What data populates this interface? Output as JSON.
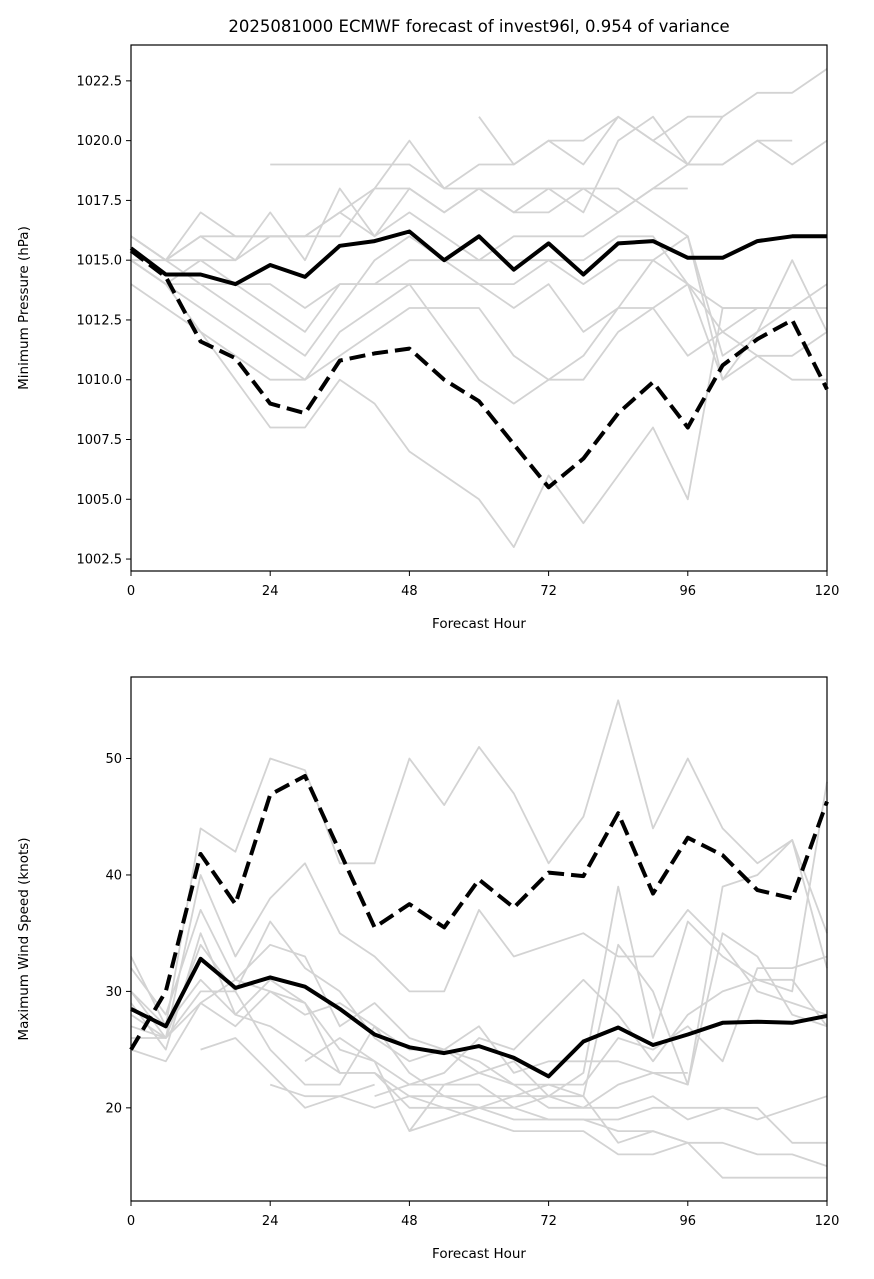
{
  "chart_data": [
    {
      "type": "line",
      "title": "2025081000 ECMWF forecast of invest96l, 0.954 of variance",
      "xlabel": "Forecast Hour",
      "ylabel": "Minimum Pressure (hPa)",
      "xlim": [
        0,
        120
      ],
      "ylim": [
        1002,
        1024
      ],
      "xticks": [
        "0",
        "24",
        "48",
        "72",
        "96",
        "120"
      ],
      "yticks": [
        "1002.5",
        "1005.0",
        "1007.5",
        "1010.0",
        "1012.5",
        "1015.0",
        "1017.5",
        "1020.0",
        "1022.5"
      ],
      "x": [
        0,
        6,
        12,
        18,
        24,
        30,
        36,
        42,
        48,
        54,
        60,
        66,
        72,
        78,
        84,
        90,
        96,
        102,
        108,
        114,
        120
      ],
      "series": [
        {
          "style": "solid-black",
          "values": [
            1015.5,
            1014.4,
            1014.4,
            1014.0,
            1014.8,
            1014.3,
            1015.6,
            1015.8,
            1016.2,
            1015.0,
            1016.0,
            1014.6,
            1015.7,
            1014.4,
            1015.7,
            1015.8,
            1015.1,
            1015.1,
            1015.8,
            1016.0,
            1016.0
          ]
        },
        {
          "style": "dashed-black",
          "values": [
            1015.4,
            1014.3,
            1011.6,
            1010.9,
            1009.0,
            1008.6,
            1010.8,
            1011.1,
            1011.3,
            1010.0,
            1009.1,
            1007.3,
            1005.5,
            1006.7,
            1008.6,
            1009.9,
            1008.0,
            1010.6,
            1011.7,
            1012.5,
            1009.6
          ]
        },
        {
          "style": "ensemble",
          "values": [
            1016,
            1015,
            1017,
            1016,
            1016,
            1016,
            1017,
            1018,
            1018,
            1017,
            1018,
            1017,
            1017,
            1018,
            1018,
            1017,
            1016,
            1010,
            1011,
            1011,
            1012
          ]
        },
        {
          "style": "ensemble",
          "values": [
            1015,
            1014,
            1013,
            1012,
            1011,
            1010,
            1012,
            1013,
            1014,
            1012,
            1010,
            1009,
            1010,
            1010,
            1012,
            1013,
            1011,
            1012,
            1013,
            1013,
            1013
          ]
        },
        {
          "style": "ensemble",
          "values": [
            1014,
            1013,
            1012,
            1011,
            1010,
            1010,
            1011,
            1012,
            1013,
            1013,
            1013,
            1011,
            1010,
            1011,
            1013,
            1013,
            1014,
            1010,
            1012,
            1015,
            1012
          ]
        },
        {
          "style": "ensemble",
          "values": [
            1016,
            1015,
            1014,
            1013,
            1012,
            1011,
            1013,
            1015,
            1016,
            1015,
            1014,
            1013,
            1014,
            1012,
            1013,
            1015,
            1016,
            1011,
            1012,
            1013,
            1014
          ]
        },
        {
          "style": "ensemble",
          "values": [
            1015,
            1014,
            1015,
            1014,
            1013,
            1012,
            1014,
            1014,
            1015,
            1015,
            1015,
            1015,
            1015,
            1015,
            1016,
            1016,
            1014,
            1013,
            1013,
            1013,
            1013
          ]
        },
        {
          "style": "ensemble",
          "values": [
            1016,
            1015,
            1015,
            1015,
            1017,
            1015,
            1018,
            1016,
            1017,
            1016,
            1015,
            1016,
            1016,
            1016,
            1017,
            1018,
            1019,
            1019,
            1020,
            1019,
            1020
          ]
        },
        {
          "style": "ensemble",
          "values": [
            null,
            null,
            null,
            null,
            1019,
            1019,
            1019,
            1019,
            1019,
            1018,
            1019,
            1019,
            1020,
            1020,
            1021,
            1020,
            1021,
            1021,
            1022,
            1022,
            1023
          ]
        },
        {
          "style": "ensemble",
          "values": [
            null,
            null,
            null,
            null,
            null,
            null,
            null,
            null,
            null,
            null,
            1021,
            1019,
            1020,
            1019,
            1021,
            1020,
            1019,
            1019,
            1020,
            1020,
            null
          ]
        },
        {
          "style": "ensemble",
          "values": [
            1015,
            1014,
            1012,
            1010,
            1008,
            1008,
            1010,
            1009,
            1007,
            1006,
            1005,
            1003,
            1006,
            1004,
            1006,
            1008,
            1005,
            1013,
            1013,
            1013,
            1013
          ]
        },
        {
          "style": "ensemble",
          "values": [
            1016,
            1015,
            1016,
            1016,
            1016,
            1016,
            1016,
            1018,
            1020,
            1018,
            1018,
            1018,
            1018,
            1017,
            1020,
            1021,
            1019,
            1021,
            null,
            null,
            null
          ]
        },
        {
          "style": "ensemble",
          "values": [
            1015,
            1014,
            1014,
            1014,
            1014,
            1013,
            1014,
            1014,
            1014,
            1014,
            1014,
            1014,
            1015,
            1014,
            1015,
            1015,
            1014,
            1012,
            1011,
            1010,
            1010
          ]
        },
        {
          "style": "ensemble",
          "values": [
            1015,
            1015,
            1016,
            1015,
            1016,
            1016,
            1017,
            1016,
            1018,
            1017,
            1018,
            1017,
            1018,
            1018,
            1017,
            1018,
            1018,
            null,
            null,
            null,
            null
          ]
        }
      ]
    },
    {
      "type": "line",
      "xlabel": "Forecast Hour",
      "ylabel": "Maximum Wind Speed (knots)",
      "xlim": [
        0,
        120
      ],
      "ylim": [
        12,
        57
      ],
      "xticks": [
        "0",
        "24",
        "48",
        "72",
        "96",
        "120"
      ],
      "yticks": [
        "20",
        "30",
        "40",
        "50"
      ],
      "x": [
        0,
        6,
        12,
        18,
        24,
        30,
        36,
        42,
        48,
        54,
        60,
        66,
        72,
        78,
        84,
        90,
        96,
        102,
        108,
        114,
        120
      ],
      "series": [
        {
          "style": "solid-black",
          "values": [
            28.5,
            27.0,
            32.8,
            30.3,
            31.2,
            30.4,
            28.5,
            26.3,
            25.2,
            24.7,
            25.3,
            24.3,
            22.7,
            25.7,
            26.9,
            25.4,
            26.3,
            27.3,
            27.4,
            27.3,
            27.9
          ]
        },
        {
          "style": "dashed-black",
          "values": [
            25,
            30,
            41.8,
            37.5,
            46.9,
            48.5,
            42,
            35.5,
            37.5,
            35.5,
            39.6,
            37.2,
            40.2,
            39.9,
            45.3,
            38.4,
            43.2,
            41.7,
            38.7,
            38.0,
            46.3
          ]
        },
        {
          "style": "ensemble",
          "values": [
            33,
            27,
            44,
            42,
            50,
            49,
            41,
            41,
            50,
            46,
            51,
            47,
            41,
            45,
            55,
            44,
            50,
            44,
            41,
            43,
            35
          ]
        },
        {
          "style": "ensemble",
          "values": [
            26,
            26,
            40,
            33,
            38,
            41,
            35,
            33,
            30,
            30,
            37,
            33,
            34,
            35,
            33,
            33,
            37,
            34,
            30,
            29,
            28
          ]
        },
        {
          "style": "ensemble",
          "values": [
            28,
            26,
            34,
            30,
            36,
            32,
            30,
            26,
            24,
            25,
            23,
            24,
            21,
            23,
            39,
            26,
            36,
            33,
            31,
            30,
            48
          ]
        },
        {
          "style": "ensemble",
          "values": [
            25,
            24,
            29,
            31,
            30,
            29,
            25,
            24,
            22,
            22,
            23,
            22,
            20,
            20,
            22,
            23,
            22,
            39,
            40,
            43,
            32
          ]
        },
        {
          "style": "ensemble",
          "values": [
            27,
            26,
            29,
            27,
            30,
            28,
            29,
            27,
            25,
            25,
            24,
            22,
            22,
            22,
            26,
            25,
            27,
            24,
            32,
            32,
            33
          ]
        },
        {
          "style": "ensemble",
          "values": [
            32,
            28,
            37,
            31,
            34,
            33,
            27,
            29,
            26,
            25,
            27,
            23,
            24,
            24,
            24,
            23,
            23,
            null,
            null,
            null,
            null
          ]
        },
        {
          "style": "ensemble",
          "values": [
            30,
            26,
            30,
            30,
            25,
            22,
            22,
            27,
            23,
            21,
            21,
            21,
            21,
            20,
            20,
            21,
            19,
            20,
            20,
            17,
            17
          ]
        },
        {
          "style": "ensemble",
          "values": [
            29,
            25,
            35,
            28,
            27,
            25,
            23,
            23,
            20,
            20,
            20,
            19,
            19,
            19,
            19,
            20,
            20,
            20,
            19,
            20,
            21
          ]
        },
        {
          "style": "ensemble",
          "values": [
            null,
            null,
            25,
            26,
            23,
            20,
            21,
            20,
            21,
            21,
            20,
            20,
            21,
            21,
            17,
            18,
            17,
            null,
            null,
            null,
            null
          ]
        },
        {
          "style": "ensemble",
          "values": [
            null,
            null,
            null,
            null,
            22,
            21,
            21,
            22,
            null,
            null,
            null,
            null,
            null,
            null,
            null,
            null,
            null,
            null,
            null,
            null,
            null
          ]
        },
        {
          "style": "ensemble",
          "values": [
            null,
            null,
            null,
            null,
            null,
            24,
            26,
            24,
            18,
            22,
            22,
            20,
            19,
            19,
            18,
            18,
            17,
            17,
            16,
            16,
            15
          ]
        },
        {
          "style": "ensemble",
          "values": [
            null,
            null,
            null,
            null,
            null,
            null,
            null,
            21,
            22,
            23,
            26,
            25,
            28,
            31,
            28,
            24,
            28,
            30,
            31,
            31,
            27
          ]
        },
        {
          "style": "ensemble",
          "values": [
            30,
            27,
            31,
            28,
            31,
            29,
            23,
            23,
            21,
            20,
            19,
            18,
            18,
            18,
            16,
            16,
            17,
            14,
            14,
            14,
            14
          ]
        },
        {
          "style": "ensemble",
          "values": [
            null,
            null,
            null,
            null,
            null,
            null,
            null,
            null,
            18,
            19,
            20,
            21,
            22,
            21,
            34,
            30,
            22,
            35,
            33,
            28,
            27
          ]
        }
      ]
    }
  ]
}
